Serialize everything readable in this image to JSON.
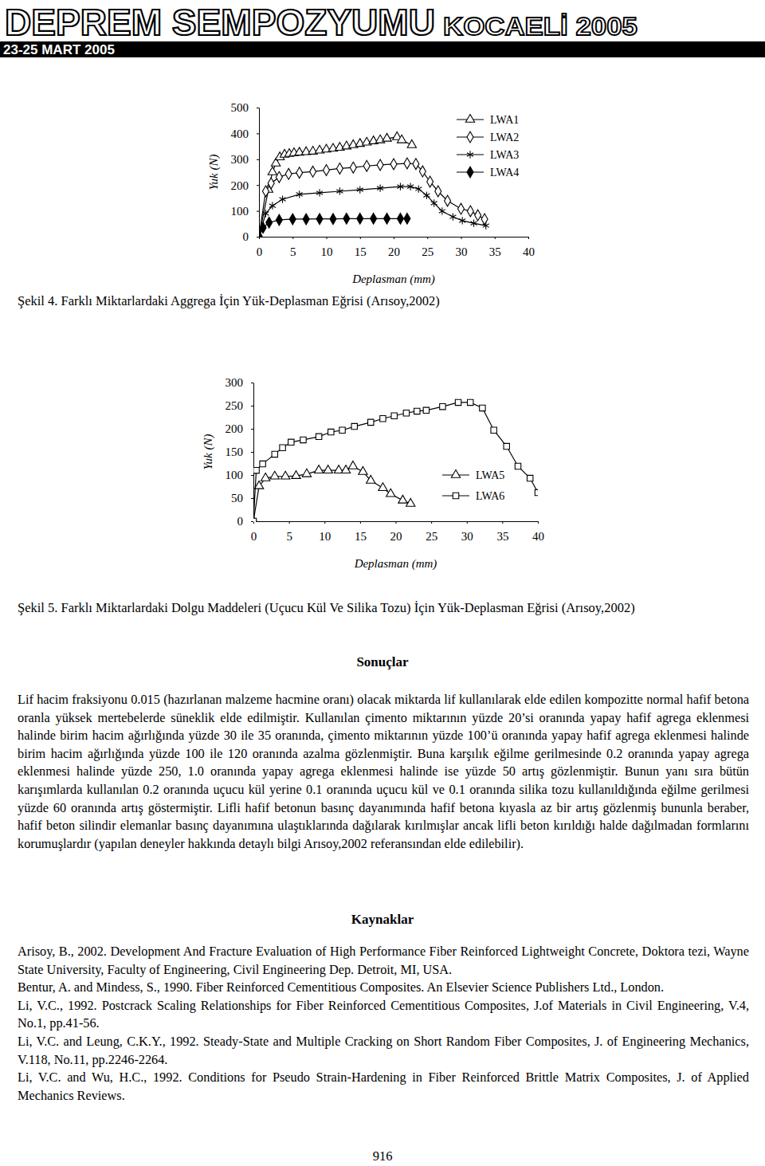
{
  "header": {
    "title": "DEPREM SEMPOZYUMU",
    "subtitle": "KOCAELİ 2005",
    "dates": "23-25 MART 2005"
  },
  "chart_data": [
    {
      "type": "line",
      "title": "Şekil 4. Farklı Miktarlardaki Aggrega İçin Yük-Deplasman Eğrisi (Arısoy,2002)",
      "x_label": "Deplasman (mm)",
      "y_label": "Yuk (N)",
      "xlim": [
        0,
        40
      ],
      "xticks": [
        0,
        5,
        10,
        15,
        20,
        25,
        30,
        35,
        40
      ],
      "ylim": [
        0,
        500
      ],
      "yticks": [
        0,
        100,
        200,
        300,
        400,
        500
      ],
      "grid": false,
      "legend": "top-right",
      "series": [
        {
          "name": "LWA1",
          "color": "#000000",
          "marker": "triangle",
          "x": [
            0,
            1.4,
            2,
            2.5,
            3.1,
            3.8,
            4.5,
            5.2,
            6,
            7,
            8,
            9,
            10,
            11,
            12,
            13,
            14,
            15,
            16,
            17,
            18,
            19,
            20.5,
            21.2,
            22.7
          ],
          "values": [
            0,
            182,
            250,
            284,
            308,
            318,
            321,
            324,
            326,
            328,
            330,
            334,
            338,
            341,
            345,
            350,
            355,
            360,
            365,
            370,
            374,
            380,
            386,
            374,
            355
          ]
        },
        {
          "name": "LWA2",
          "color": "#000000",
          "marker": "diamond",
          "x": [
            0,
            1,
            1.8,
            3,
            4.4,
            6,
            8,
            10,
            12,
            14,
            16,
            18,
            20,
            22,
            23.3,
            24.3,
            25.4,
            26.6,
            28,
            30,
            31.4,
            32.5,
            33.5
          ],
          "values": [
            0,
            176,
            207,
            231,
            243,
            248,
            252,
            258,
            264,
            268,
            274,
            278,
            281,
            284,
            282,
            253,
            213,
            176,
            139,
            108,
            99,
            83,
            68
          ]
        },
        {
          "name": "LWA3",
          "color": "#000000",
          "marker": "asterisk",
          "x": [
            0,
            1,
            2,
            3.5,
            6,
            9,
            12,
            15,
            18,
            21,
            22.5,
            23.7,
            24.9,
            26,
            27.2,
            28.8,
            30.2,
            31.9,
            33.7
          ],
          "values": [
            0,
            90,
            120,
            145,
            164,
            170,
            176,
            182,
            188,
            194,
            194,
            185,
            160,
            130,
            99,
            77,
            62,
            52,
            43
          ]
        },
        {
          "name": "LWA4",
          "color": "#000000",
          "marker": "filled-diamond",
          "x": [
            0,
            0.6,
            1.5,
            3,
            5,
            7,
            9,
            11,
            13,
            15,
            17,
            19,
            21,
            22
          ],
          "values": [
            0,
            35,
            55,
            65,
            68,
            68,
            69,
            69,
            70,
            70,
            70,
            70,
            70,
            70
          ]
        }
      ]
    },
    {
      "type": "line",
      "title": "Şekil 5. Farklı Miktarlardaki Dolgu Maddeleri (Uçucu Kül Ve Silika Tozu) İçin Yük-Deplasman Eğrisi (Arısoy,2002)",
      "x_label": "Deplasman (mm)",
      "y_label": "Yuk (N)",
      "xlim": [
        0,
        40
      ],
      "xticks": [
        0,
        5,
        10,
        15,
        20,
        25,
        30,
        35,
        40
      ],
      "ylim": [
        0,
        300
      ],
      "yticks": [
        0,
        50,
        100,
        150,
        200,
        250,
        300
      ],
      "grid": false,
      "legend": "bottom-right",
      "series": [
        {
          "name": "LWA5",
          "color": "#000000",
          "marker": "triangle",
          "x": [
            0,
            0.8,
            1.7,
            3,
            4.5,
            6,
            7.5,
            9.2,
            10.5,
            12,
            13,
            14,
            15.4,
            16.5,
            18.2,
            19.3,
            21,
            22.1
          ],
          "values": [
            0,
            76,
            93,
            97,
            97,
            98,
            102,
            110,
            110,
            110,
            110,
            119,
            107,
            88,
            72,
            59,
            45,
            38
          ]
        },
        {
          "name": "LWA6",
          "color": "#000000",
          "marker": "square",
          "x": [
            0,
            0.4,
            1.3,
            3,
            4.1,
            5.3,
            7,
            9.2,
            10.9,
            12.5,
            14.2,
            16.5,
            18.2,
            19.8,
            21.5,
            23,
            24.3,
            26.6,
            28.8,
            30.5,
            32.2,
            33.8,
            35.6,
            37.2,
            38.9,
            40
          ],
          "values": [
            0,
            110,
            124,
            145,
            159,
            171,
            176,
            183,
            193,
            197,
            205,
            214,
            222,
            228,
            234,
            238,
            240,
            248,
            257,
            257,
            245,
            197,
            162,
            119,
            93,
            62
          ]
        }
      ]
    }
  ],
  "sections": {
    "conclusion": {
      "heading": "Sonuçlar",
      "text": "Lif hacim fraksiyonu 0.015 (hazırlanan malzeme hacmine oranı) olacak miktarda lif kullanılarak elde edilen kompozitte normal hafif betona oranla yüksek mertebelerde süneklik elde edilmiştir. Kullanılan çimento miktarının yüzde 20’si oranında yapay hafif agrega eklenmesi halinde birim hacim ağırlığında yüzde 30 ile 35 oranında, çimento miktarının yüzde 100’ü oranında yapay hafif agrega eklenmesi halinde birim hacim ağırlığında yüzde 100 ile 120 oranında azalma gözlenmiştir. Buna karşılık eğilme gerilmesinde 0.2 oranında yapay agrega eklenmesi halinde yüzde 250, 1.0 oranında yapay agrega eklenmesi halinde ise yüzde 50 artış gözlenmiştir. Bunun yanı sıra bütün karışımlarda kullanılan 0.2 oranında uçucu kül yerine 0.1 oranında uçucu kül ve 0.1 oranında silika tozu kullanıldığında eğilme gerilmesi yüzde 60 oranında artış göstermiştir. Lifli hafif betonun basınç dayanımında hafif betona kıyasla az bir artış gözlenmiş bununla beraber, hafif beton silindir elemanlar basınç dayanımına ulaştıklarında dağılarak kırılmışlar ancak lifli beton kırıldığı halde dağılmadan formlarını korumuşlardır (yapılan deneyler hakkında detaylı bilgi Arısoy,2002 referansından elde edilebilir)."
    },
    "references": {
      "heading": "Kaynaklar",
      "items": [
        "Arisoy, B., 2002. Development And Fracture Evaluation of High Performance Fiber Reinforced Lightweight Concrete, Doktora tezi, Wayne State University, Faculty of Engineering, Civil Engineering Dep. Detroit, MI, USA.",
        "Bentur, A. and Mindess, S., 1990. Fiber Reinforced Cementitious Composites. An Elsevier Science Publishers Ltd., London.",
        "Li, V.C., 1992. Postcrack Scaling Relationships for Fiber Reinforced Cementitious Composites, J.of Materials in Civil Engineering, V.4, No.1, pp.41-56.",
        "Li, V.C. and Leung, C.K.Y., 1992. Steady-State and Multiple Cracking on Short Random Fiber Composites, J. of Engineering Mechanics, V.118, No.11, pp.2246-2264.",
        "Li, V.C. and Wu, H.C., 1992. Conditions for Pseudo Strain-Hardening in Fiber Reinforced Brittle Matrix Composites, J. of Applied Mechanics Reviews."
      ]
    }
  },
  "page_number": 916
}
